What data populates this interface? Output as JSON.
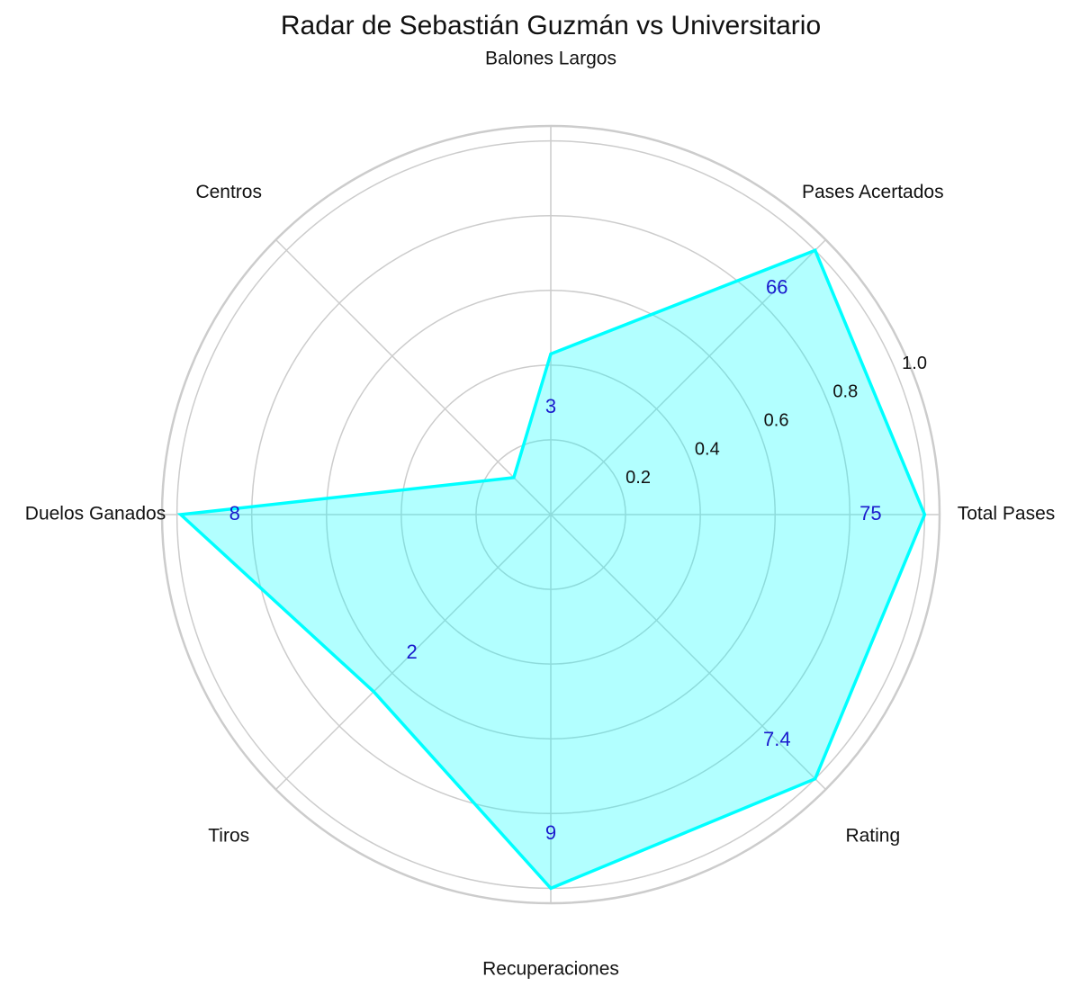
{
  "chart_data": {
    "type": "radar",
    "title": "Radar de Sebastián Guzmán vs Universitario",
    "categories": [
      "Total Pases",
      "Pases Acertados",
      "Balones Largos",
      "Centros",
      "Duelos Ganados",
      "Tiros",
      "Recuperaciones",
      "Rating"
    ],
    "values": [
      1.0,
      1.0,
      0.43,
      0.14,
      0.99,
      0.67,
      1.0,
      1.0
    ],
    "raw_values": [
      75,
      66,
      3,
      null,
      8,
      2,
      9,
      7.4
    ],
    "color": "#00ffff",
    "label_color": "#1a1acd",
    "ylim": [
      0,
      1.04
    ],
    "yticks": [
      0.2,
      0.4,
      0.6,
      0.8,
      {
        "value": 1.0,
        "label": "1.0"
      }
    ],
    "grid": true
  }
}
